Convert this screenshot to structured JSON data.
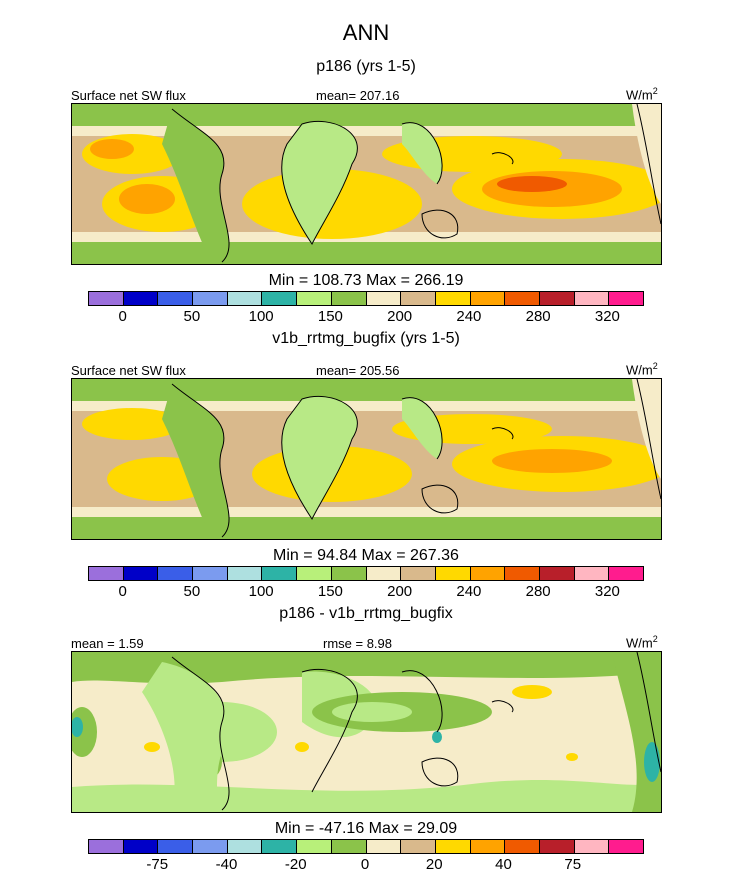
{
  "title": "ANN",
  "colors": {
    "land_outline": "#000000",
    "c_low": "#9bd26b",
    "c_green": "#8bc34a",
    "c_lightgreen": "#b8e986",
    "c_tan": "#d9b98c",
    "c_cream": "#f6ecc9",
    "c_yellow": "#ffd900",
    "c_orange": "#ffa300",
    "c_red": "#f05a00",
    "c_teal": "#2db3a6",
    "c_lightblue": "#aee0e0"
  },
  "colorbar_colors": [
    "#9b6fdc",
    "#0000c8",
    "#3a5ee8",
    "#7b9bef",
    "#aee0e0",
    "#2db3a6",
    "#b8f07a",
    "#8bc34a",
    "#f6ecc9",
    "#d9b98c",
    "#ffd900",
    "#ffa300",
    "#f05a00",
    "#b81f2a",
    "#ffb6c1",
    "#ff1c8e"
  ],
  "panels": [
    {
      "subtitle": "p186 (yrs 1-5)",
      "left_label": "Surface net SW flux",
      "center_label": "mean= 207.16",
      "units": "W/m",
      "units_sup": "2",
      "stats": "Min = 108.73 Max = 266.19",
      "ticks": [
        "0",
        "50",
        "100",
        "150",
        "200",
        "240",
        "280",
        "320"
      ]
    },
    {
      "subtitle": "v1b_rrtmg_bugfix (yrs 1-5)",
      "left_label": "Surface net SW flux",
      "center_label": "mean= 205.56",
      "units": "W/m",
      "units_sup": "2",
      "stats": "Min =  94.84 Max = 267.36",
      "ticks": [
        "0",
        "50",
        "100",
        "150",
        "200",
        "240",
        "280",
        "320"
      ]
    },
    {
      "subtitle": "p186 - v1b_rrtmg_bugfix",
      "left_label": "mean =   1.59",
      "center_label": "rmse =   8.98",
      "units": "W/m",
      "units_sup": "2",
      "stats": "Min = -47.16 Max =  29.09",
      "ticks": [
        "-75",
        "-40",
        "-20",
        "0",
        "20",
        "40",
        "75"
      ]
    }
  ]
}
